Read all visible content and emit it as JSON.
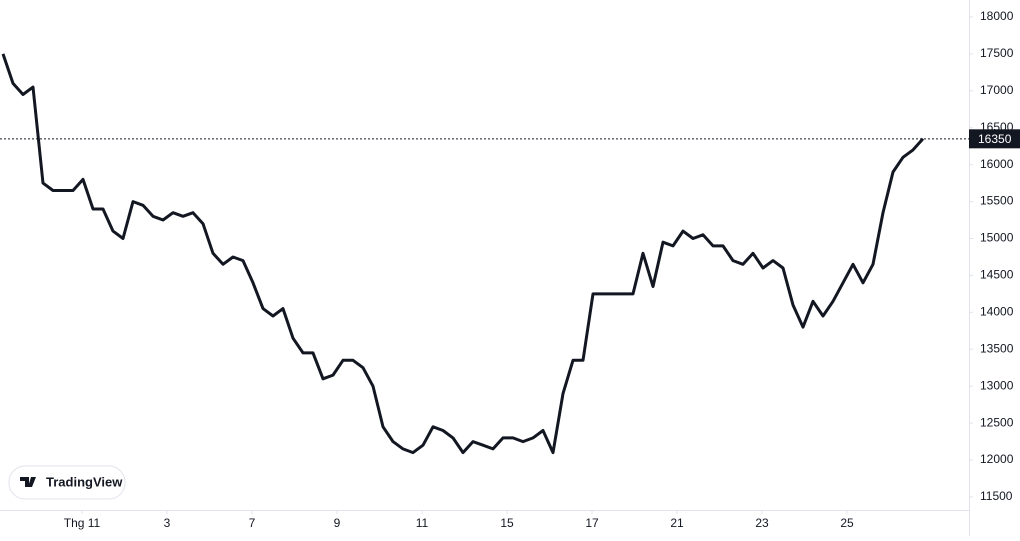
{
  "chart_data": {
    "type": "line",
    "x": [
      0,
      1,
      2,
      3,
      4,
      5,
      6,
      7,
      8,
      9,
      10,
      11,
      12,
      13,
      14,
      15,
      16,
      17,
      18,
      19,
      20,
      21,
      22,
      23,
      24,
      25,
      26,
      27,
      28,
      29,
      30,
      31,
      32,
      33,
      34,
      35,
      36,
      37,
      38,
      39,
      40,
      41,
      42,
      43,
      44,
      45,
      46,
      47,
      48,
      49,
      50,
      51,
      52,
      53,
      54,
      55,
      56,
      57,
      58,
      59,
      60,
      61,
      62,
      63,
      64,
      65,
      66,
      67,
      68,
      69,
      70,
      71,
      72,
      73,
      74,
      75,
      76,
      77,
      78,
      79,
      80,
      81,
      82,
      83,
      84,
      85,
      86,
      87,
      88,
      89,
      90,
      91,
      92
    ],
    "series": [
      {
        "color": "#131722",
        "values": [
          17500,
          17100,
          16950,
          17050,
          15750,
          15650,
          15650,
          15650,
          15800,
          15400,
          15400,
          15100,
          15000,
          15500,
          15450,
          15300,
          15250,
          15350,
          15300,
          15350,
          15200,
          14800,
          14650,
          14750,
          14700,
          14400,
          14050,
          13950,
          14050,
          13650,
          13450,
          13450,
          13100,
          13150,
          13350,
          13350,
          13250,
          13000,
          12450,
          12250,
          12150,
          12100,
          12200,
          12450,
          12400,
          12300,
          12100,
          12250,
          12200,
          12150,
          12300,
          12300,
          12250,
          12300,
          12400,
          12100,
          12900,
          13350,
          13350,
          14250,
          14250,
          14250,
          14250,
          14250,
          14800,
          14350,
          14950,
          14900,
          15100,
          15000,
          15050,
          14900,
          14900,
          14700,
          14650,
          14800,
          14600,
          14700,
          14600,
          14100,
          13800,
          14150,
          13950,
          14150,
          14400,
          14650,
          14400,
          14650,
          15350,
          15900,
          16100,
          16200,
          16350
        ]
      }
    ],
    "xlim": [
      -0.3,
      96.6
    ],
    "xticks": [
      {
        "value": 7.9,
        "label": "Thg 11"
      },
      {
        "value": 16.4,
        "label": "3"
      },
      {
        "value": 24.9,
        "label": "7"
      },
      {
        "value": 33.4,
        "label": "9"
      },
      {
        "value": 41.9,
        "label": "11"
      },
      {
        "value": 50.4,
        "label": "15"
      },
      {
        "value": 58.9,
        "label": "17"
      },
      {
        "value": 67.4,
        "label": "21"
      },
      {
        "value": 75.9,
        "label": "23"
      },
      {
        "value": 84.4,
        "label": "25"
      }
    ],
    "ylim": [
      11323,
      18230
    ],
    "yticks": [
      11500,
      12000,
      12500,
      13000,
      13500,
      14000,
      14500,
      15000,
      15500,
      16000,
      16500,
      17000,
      17500,
      18000
    ],
    "last_price": 16350,
    "watermark": "TradingView"
  }
}
